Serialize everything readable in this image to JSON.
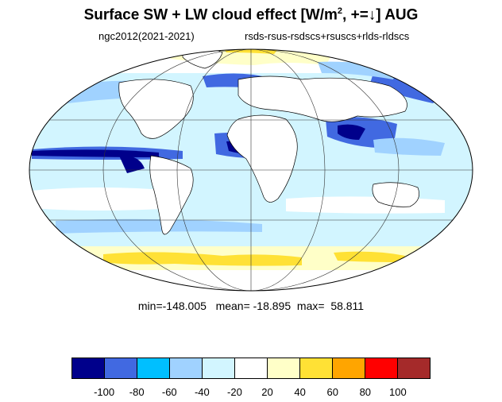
{
  "title": {
    "main_prefix": "Surface SW + LW cloud effect [W/m",
    "superscript": "2",
    "main_suffix": ", +=↓]  AUG"
  },
  "subtitle_left": "ngc2012(2021-2021)",
  "subtitle_right": "rsds-rsus-rsdscs+rsuscs+rlds-rldscs",
  "stats": "min=-148.005   mean= -18.895  max=  58.811",
  "colorbar": {
    "colors": [
      "#00008b",
      "#4169e1",
      "#00bfff",
      "#a0d2ff",
      "#d2f5ff",
      "#ffffff",
      "#ffffc8",
      "#ffe135",
      "#ffa500",
      "#ff0000",
      "#a52a2a"
    ],
    "labels": [
      "-100",
      "-80",
      "-60",
      "-40",
      "-20",
      "20",
      "40",
      "60",
      "80",
      "100"
    ]
  },
  "map": {
    "projection": "Mollweide",
    "ocean_colors": {
      "light": "#d2f5ff",
      "medium": "#a0d2ff",
      "strong": "#4169e1",
      "deepest": "#00008b",
      "pale_yellow": "#ffffc8",
      "yellow": "#ffe135"
    }
  }
}
